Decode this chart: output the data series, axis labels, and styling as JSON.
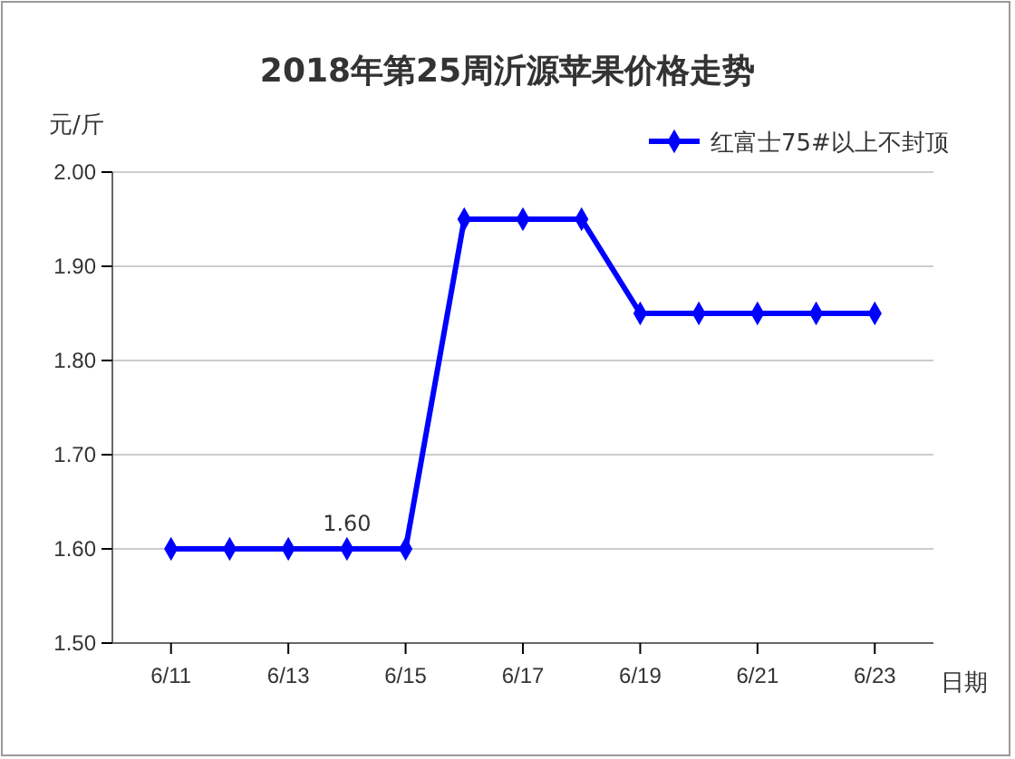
{
  "chart_data": {
    "type": "line",
    "title": "2018年第25周沂源苹果价格走势",
    "ylabel": "元/斤",
    "xlabel": "日期",
    "x": [
      "--06-11",
      "--06-12",
      "--06-13",
      "--06-14",
      "--06-15",
      "--06-16",
      "--06-17",
      "--06-18",
      "--06-19",
      "--06-20",
      "--06-21",
      "--06-22",
      "--06-23"
    ],
    "series": [
      {
        "name": "红富士75#以上不封顶",
        "color": "#0000ff",
        "values": [
          1.6,
          1.6,
          1.6,
          1.6,
          1.6,
          1.95,
          1.95,
          1.95,
          1.85,
          1.85,
          1.85,
          1.85,
          1.85
        ]
      }
    ],
    "xlim": [
      "--06-10",
      "--06-24"
    ],
    "xticks": [
      {
        "value": "--06-11",
        "label": "6/11"
      },
      {
        "value": "--06-13",
        "label": "6/13"
      },
      {
        "value": "--06-15",
        "label": "6/15"
      },
      {
        "value": "--06-17",
        "label": "6/17"
      },
      {
        "value": "--06-19",
        "label": "6/19"
      },
      {
        "value": "--06-21",
        "label": "6/21"
      },
      {
        "value": "--06-23",
        "label": "6/23"
      }
    ],
    "ylim": [
      1.5,
      2.0
    ],
    "yticks": [
      {
        "value": 1.5,
        "label": "1.50"
      },
      {
        "value": 1.6,
        "label": "1.60"
      },
      {
        "value": 1.7,
        "label": "1.70"
      },
      {
        "value": 1.8,
        "label": "1.80"
      },
      {
        "value": 1.9,
        "label": "1.90"
      },
      {
        "value": 2.0,
        "label": "2.00"
      }
    ],
    "annotations": [
      {
        "text": "1.60",
        "x": "--06-14",
        "y": 1.6
      }
    ],
    "grid": "y",
    "legend": "top right",
    "marker": "diamond",
    "line_style": "solid"
  }
}
